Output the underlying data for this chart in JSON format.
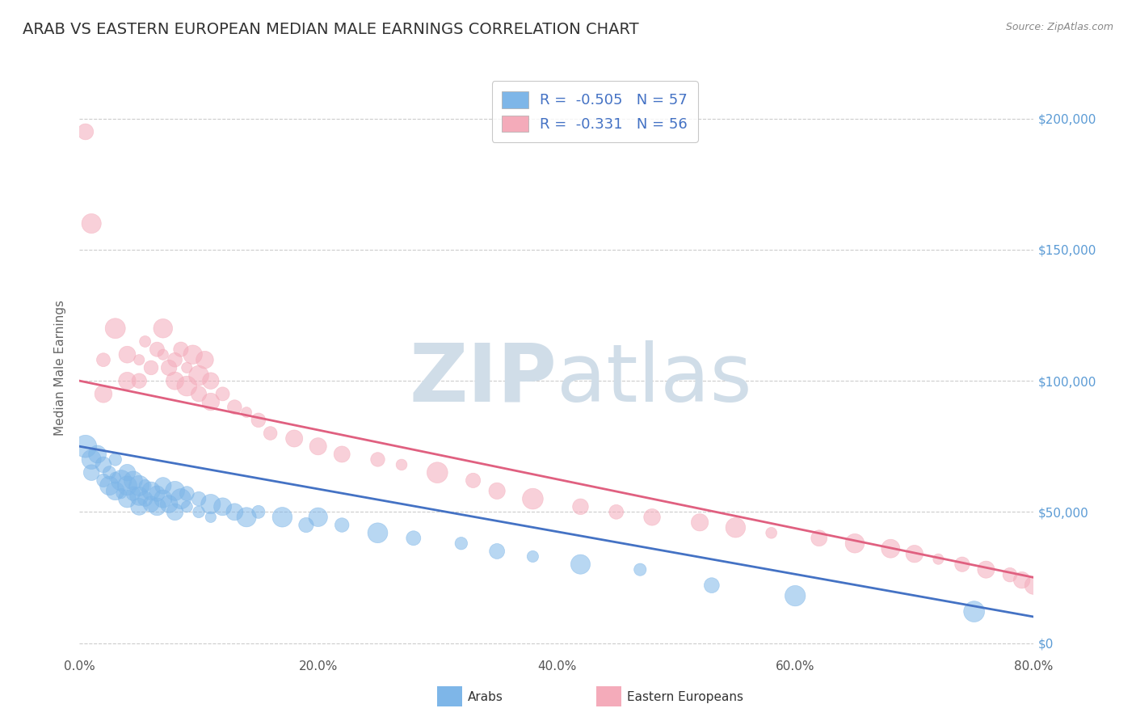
{
  "title": "ARAB VS EASTERN EUROPEAN MEDIAN MALE EARNINGS CORRELATION CHART",
  "source_text": "Source: ZipAtlas.com",
  "ylabel": "Median Male Earnings",
  "watermark_zip": "ZIP",
  "watermark_atlas": "atlas",
  "xlim": [
    0.0,
    0.8
  ],
  "ylim": [
    -5000,
    215000
  ],
  "xtick_labels": [
    "0.0%",
    "20.0%",
    "40.0%",
    "60.0%",
    "80.0%"
  ],
  "xtick_values": [
    0.0,
    0.2,
    0.4,
    0.6,
    0.8
  ],
  "ytick_values": [
    0,
    50000,
    100000,
    150000,
    200000
  ],
  "ytick_labels": [
    "$0",
    "$50,000",
    "$100,000",
    "$150,000",
    "$200,000"
  ],
  "grid_color": "#cccccc",
  "background_color": "#ffffff",
  "arab_color": "#7EB6E8",
  "eastern_eu_color": "#F4ABBA",
  "arab_line_color": "#4472C4",
  "eastern_eu_line_color": "#E06080",
  "legend_R_arab": "-0.505",
  "legend_N_arab": "57",
  "legend_R_eastern": "-0.331",
  "legend_N_eastern": "56",
  "legend_label_arab": "Arabs",
  "legend_label_eastern": "Eastern Europeans",
  "title_fontsize": 14,
  "axis_label_fontsize": 11,
  "tick_fontsize": 11,
  "watermark_color": "#d0dde8",
  "watermark_fontsize": 72,
  "arab_scatter_x": [
    0.005,
    0.01,
    0.01,
    0.015,
    0.02,
    0.02,
    0.025,
    0.025,
    0.03,
    0.03,
    0.03,
    0.035,
    0.035,
    0.04,
    0.04,
    0.04,
    0.045,
    0.045,
    0.05,
    0.05,
    0.05,
    0.055,
    0.055,
    0.06,
    0.06,
    0.065,
    0.065,
    0.07,
    0.07,
    0.075,
    0.08,
    0.08,
    0.085,
    0.09,
    0.09,
    0.1,
    0.1,
    0.11,
    0.11,
    0.12,
    0.13,
    0.14,
    0.15,
    0.17,
    0.19,
    0.2,
    0.22,
    0.25,
    0.28,
    0.32,
    0.35,
    0.38,
    0.42,
    0.47,
    0.53,
    0.6,
    0.75
  ],
  "arab_scatter_y": [
    75000,
    70000,
    65000,
    72000,
    68000,
    62000,
    65000,
    60000,
    70000,
    63000,
    58000,
    62000,
    57000,
    65000,
    60000,
    55000,
    62000,
    57000,
    60000,
    56000,
    52000,
    60000,
    55000,
    58000,
    53000,
    57000,
    52000,
    60000,
    55000,
    53000,
    58000,
    50000,
    55000,
    57000,
    52000,
    55000,
    50000,
    53000,
    48000,
    52000,
    50000,
    48000,
    50000,
    48000,
    45000,
    48000,
    45000,
    42000,
    40000,
    38000,
    35000,
    33000,
    30000,
    28000,
    22000,
    18000,
    12000
  ],
  "eastern_scatter_x": [
    0.005,
    0.01,
    0.02,
    0.02,
    0.03,
    0.04,
    0.04,
    0.05,
    0.05,
    0.055,
    0.06,
    0.065,
    0.07,
    0.07,
    0.075,
    0.08,
    0.08,
    0.085,
    0.09,
    0.09,
    0.095,
    0.1,
    0.1,
    0.105,
    0.11,
    0.11,
    0.12,
    0.13,
    0.14,
    0.15,
    0.16,
    0.18,
    0.2,
    0.22,
    0.25,
    0.27,
    0.3,
    0.33,
    0.35,
    0.38,
    0.42,
    0.45,
    0.48,
    0.52,
    0.55,
    0.58,
    0.62,
    0.65,
    0.68,
    0.7,
    0.72,
    0.74,
    0.76,
    0.78,
    0.79,
    0.8
  ],
  "eastern_scatter_y": [
    195000,
    160000,
    108000,
    95000,
    120000,
    110000,
    100000,
    108000,
    100000,
    115000,
    105000,
    112000,
    120000,
    110000,
    105000,
    108000,
    100000,
    112000,
    105000,
    98000,
    110000,
    102000,
    95000,
    108000,
    100000,
    92000,
    95000,
    90000,
    88000,
    85000,
    80000,
    78000,
    75000,
    72000,
    70000,
    68000,
    65000,
    62000,
    58000,
    55000,
    52000,
    50000,
    48000,
    46000,
    44000,
    42000,
    40000,
    38000,
    36000,
    34000,
    32000,
    30000,
    28000,
    26000,
    24000,
    22000
  ]
}
